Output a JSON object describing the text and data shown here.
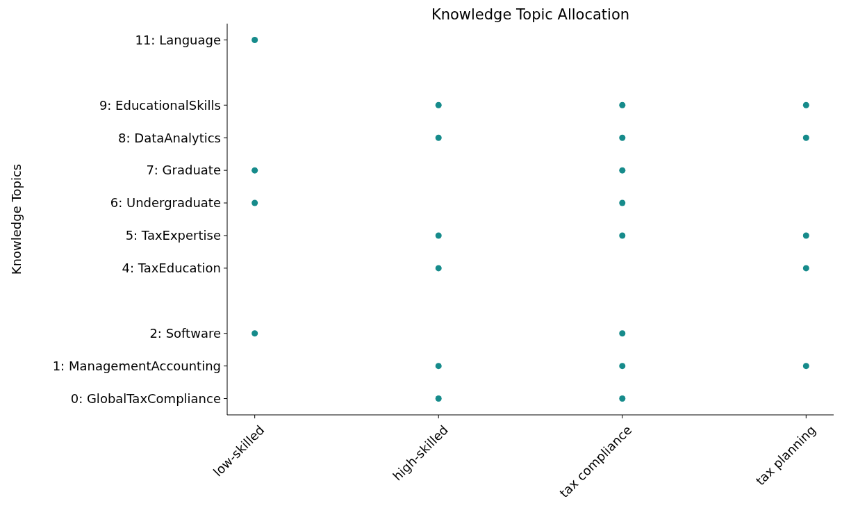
{
  "chart_data": {
    "type": "scatter",
    "title": "Knowledge Topic Allocation",
    "ylabel": "Knowledge Topics",
    "categories": [
      "low-skilled",
      "high-skilled",
      "tax compliance",
      "tax planning"
    ],
    "ylim": [
      -0.5,
      11.5
    ],
    "yticks": [
      {
        "value": 0,
        "label": "0: GlobalTaxCompliance"
      },
      {
        "value": 1,
        "label": "1: ManagementAccounting"
      },
      {
        "value": 2,
        "label": "2: Software"
      },
      {
        "value": 4,
        "label": "4: TaxEducation"
      },
      {
        "value": 5,
        "label": "5: TaxExpertise"
      },
      {
        "value": 6,
        "label": "6: Undergraduate"
      },
      {
        "value": 7,
        "label": "7: Graduate"
      },
      {
        "value": 8,
        "label": "8: DataAnalytics"
      },
      {
        "value": 9,
        "label": "9: EducationalSkills"
      },
      {
        "value": 11,
        "label": "11: Language"
      }
    ],
    "marker": "circle",
    "series": [
      {
        "color": "#168b8b",
        "x": [
          "low-skilled",
          "high-skilled",
          "tax compliance",
          "tax planning",
          "high-skilled",
          "tax compliance",
          "tax planning",
          "low-skilled",
          "tax compliance",
          "low-skilled",
          "tax compliance",
          "high-skilled",
          "tax compliance",
          "tax planning",
          "high-skilled",
          "tax planning",
          "low-skilled",
          "tax compliance",
          "high-skilled",
          "tax compliance",
          "tax planning",
          "high-skilled",
          "tax compliance"
        ],
        "values": [
          11,
          9,
          9,
          9,
          8,
          8,
          8,
          7,
          7,
          6,
          6,
          5,
          5,
          5,
          4,
          4,
          2,
          2,
          1,
          1,
          1,
          0,
          0
        ]
      }
    ]
  }
}
